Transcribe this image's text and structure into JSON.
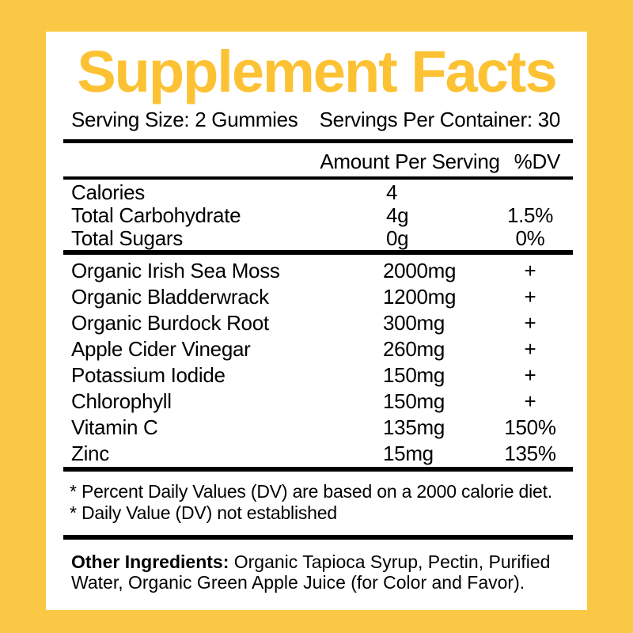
{
  "colors": {
    "background": "#FAC844",
    "panel": "#FFFFFF",
    "title": "#FCC233",
    "text": "#000000",
    "rule": "#000000"
  },
  "title": "Supplement Facts",
  "serving": {
    "size_label": "Serving Size: 2 Gummies",
    "per_container_label": "Servings Per Container: 30"
  },
  "columns": {
    "amount_header": "Amount Per Serving",
    "dv_header": "%DV"
  },
  "nutrition_rows": [
    {
      "label": "Calories",
      "amount": "4",
      "dv": ""
    },
    {
      "label": "Total Carbohydrate",
      "amount": "4g",
      "dv": "1.5%"
    },
    {
      "label": "Total Sugars",
      "amount": "0g",
      "dv": "0%"
    }
  ],
  "ingredient_rows": [
    {
      "label": "Organic Irish Sea Moss",
      "amount": "2000mg",
      "dv": "+"
    },
    {
      "label": "Organic Bladderwrack",
      "amount": "1200mg",
      "dv": "+"
    },
    {
      "label": "Organic Burdock Root",
      "amount": "300mg",
      "dv": "+"
    },
    {
      "label": "Apple Cider Vinegar",
      "amount": "260mg",
      "dv": "+"
    },
    {
      "label": "Potassium Iodide",
      "amount": "150mg",
      "dv": "+"
    },
    {
      "label": "Chlorophyll",
      "amount": "150mg",
      "dv": "+"
    },
    {
      "label": "Vitamin C",
      "amount": "135mg",
      "dv": "150%"
    },
    {
      "label": "Zinc",
      "amount": "15mg",
      "dv": "135%"
    }
  ],
  "footnotes": [
    "* Percent Daily Values (DV) are based on a 2000 calorie diet.",
    "* Daily Value (DV) not established"
  ],
  "other_ingredients": {
    "label": "Other Ingredients:",
    "text": " Organic Tapioca Syrup, Pectin, Purified Water, Organic Green Apple Juice (for Color and Favor)."
  }
}
